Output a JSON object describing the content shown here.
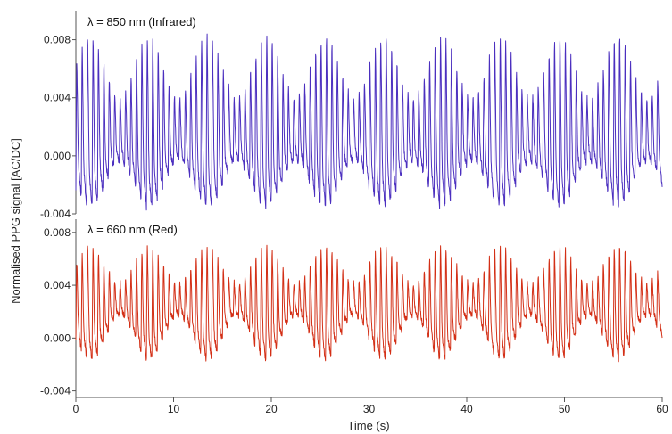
{
  "chart_data": {
    "type": "line",
    "ylabel": "Normalised PPG signal [AC/DC]",
    "xlabel": "Time (s)",
    "xlim": [
      0,
      60
    ],
    "x_ticks": [
      "0",
      "10",
      "20",
      "30",
      "40",
      "50",
      "60"
    ],
    "grid": false,
    "panels": [
      {
        "label": "λ = 850 nm (Infrared)",
        "color": "#4b2fbf",
        "ylim": [
          -0.004,
          0.01
        ],
        "y_ticks": [
          "0.008",
          "0.004",
          "0.000",
          "-0.004"
        ],
        "y_tick_values": [
          0.008,
          0.004,
          0.0,
          -0.004
        ],
        "signal": {
          "duration_s": 60,
          "pulse_rate_hz": 1.8,
          "baseline": 0.0,
          "peak_envelope": [
            0.004,
            0.0082
          ],
          "trough_envelope": [
            -0.0038,
            -0.0005
          ],
          "respiratory_period_s": 6.0
        }
      },
      {
        "label": "λ = 660 nm (Red)",
        "color": "#d32f16",
        "ylim": [
          -0.0045,
          0.009
        ],
        "y_ticks": [
          "0.008",
          "0.004",
          "0.000",
          "-0.004"
        ],
        "y_tick_values": [
          0.008,
          0.004,
          0.0,
          -0.004
        ],
        "signal": {
          "duration_s": 60,
          "pulse_rate_hz": 1.8,
          "baseline": 0.0008,
          "peak_envelope": [
            0.004,
            0.0068
          ],
          "trough_envelope": [
            -0.002,
            0.0015
          ],
          "respiratory_period_s": 6.0
        }
      }
    ]
  }
}
